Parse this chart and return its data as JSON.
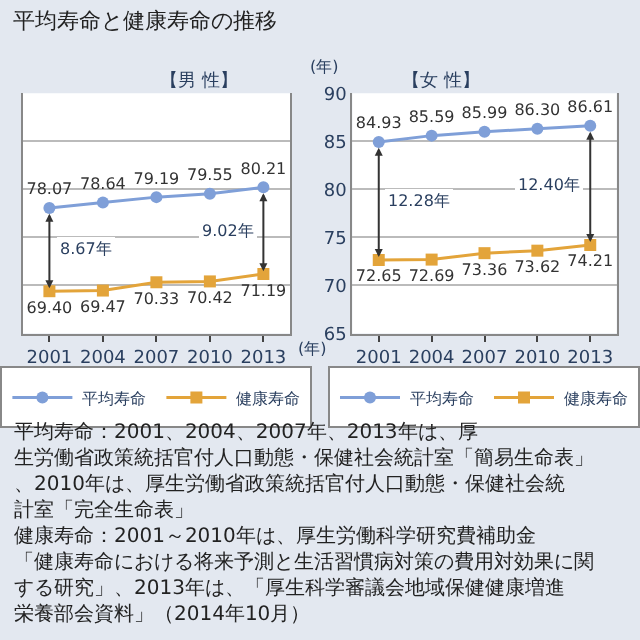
{
  "chart_data": [
    {
      "type": "line",
      "title": "平均寿命と健康寿命の推移",
      "subtitle": "【男 性】",
      "xlabel": "(年)",
      "categories": [
        "2001",
        "2004",
        "2007",
        "2010",
        "2013"
      ],
      "series": [
        {
          "name": "平均寿命",
          "color": "#7f9fd8",
          "marker": "circle",
          "values": [
            78.07,
            78.64,
            79.19,
            79.55,
            80.21
          ],
          "value_labels": [
            "78.07",
            "78.64",
            "79.19",
            "79.55",
            "80.21"
          ]
        },
        {
          "name": "健康寿命",
          "color": "#e3a43a",
          "marker": "square",
          "values": [
            69.4,
            69.47,
            70.33,
            70.42,
            71.19
          ],
          "value_labels": [
            "69.40",
            "69.47",
            "70.33",
            "70.42",
            "71.19"
          ]
        }
      ],
      "ylim": [
        65,
        90
      ],
      "yticks": [
        65,
        70,
        75,
        80,
        85,
        90
      ],
      "tick_labels": "x",
      "grid": "y",
      "legend": "bottom",
      "annotations": [
        "8.67年",
        "9.02年",
        "平均寿命：2001、2004、2007年、2013年は、厚生労働省政策統括官付人口動態・保健社会統計室「簡易生命表」、2010年は、厚生労働省政策統括官付人口動態・保健社会統計室「完全生命表」",
        "健康寿命：2001～2010年は、厚生労働科学研究費補助金「健康寿命における将来予測と生活習慣病対策の費用対効果に関する研究」、2013年は、「厚生科学審議会地域保健健康増進栄養部会資料」（2014年10月）"
      ]
    },
    {
      "type": "line",
      "title": "【女 性】",
      "ylabel": "(年)",
      "categories": [
        "2001",
        "2004",
        "2007",
        "2010",
        "2013"
      ],
      "series": [
        {
          "name": "平均寿命",
          "color": "#7f9fd8",
          "marker": "circle",
          "values": [
            84.93,
            85.59,
            85.99,
            86.3,
            86.61
          ],
          "value_labels": [
            "84.93",
            "85.59",
            "85.99",
            "86.30",
            "86.61"
          ]
        },
        {
          "name": "健康寿命",
          "color": "#e3a43a",
          "marker": "square",
          "values": [
            72.65,
            72.69,
            73.36,
            73.62,
            74.21
          ],
          "value_labels": [
            "72.65",
            "72.69",
            "73.36",
            "73.62",
            "74.21"
          ]
        }
      ],
      "ylim": [
        65,
        90
      ],
      "yticks": [
        65,
        70,
        75,
        80,
        85,
        90
      ],
      "grid": "y",
      "legend": "bottom",
      "annotations": [
        "12.28年",
        "12.40年"
      ]
    }
  ]
}
